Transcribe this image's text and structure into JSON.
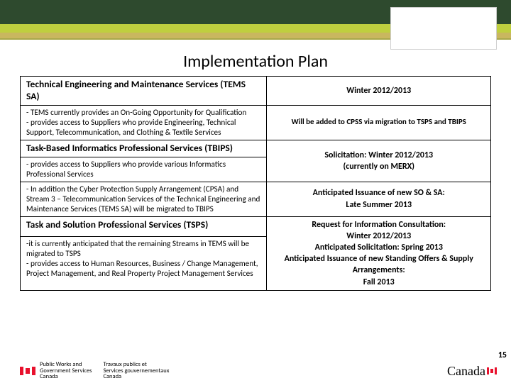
{
  "title": "Implementation Plan",
  "pageNumber": "15",
  "rows": [
    {
      "leftHead": "Technical Engineering and Maintenance Services (TEMS SA)",
      "leftBody": "- TEMS currently provides an On-Going Opportunity for Qualification\n- provides access to Suppliers who provide Engineering, Technical Support, Telecommunication, and Clothing & Textile Services",
      "rightHead": "Winter 2012/2013",
      "rightBody": "Will be added to CPSS via migration to TSPS and TBIPS"
    },
    {
      "leftHead": "Task-Based Informatics Professional Services (TBIPS)",
      "leftBody1": "- provides access to Suppliers who provide various Informatics Professional Services",
      "leftBody2": "- In addition the Cyber Protection Supply Arrangement (CPSA) and Stream 3 – Telecommunication Services of the Technical Engineering and Maintenance Services (TEMS SA) will be migrated to TBIPS",
      "rightBody1": "Solicitation: Winter 2012/2013\n(currently on MERX)",
      "rightBody2": "Anticipated Issuance of new SO & SA:\nLate Summer 2013"
    },
    {
      "leftHead": "Task and Solution Professional Services (TSPS)",
      "leftBody": "-it is currently anticipated that the remaining Streams in TEMS will be migrated to TSPS\n- provides access to Human Resources, Business / Change Management, Project Management, and Real Property Project Management Services",
      "rightBody": "Request for Information Consultation:\nWinter 2012/2013\nAnticipated Solicitation: Spring 2013\nAnticipated Issuance of new Standing Offers & Supply Arrangements:\nFall 2013"
    }
  ],
  "footer": {
    "dept_en_line1": "Public Works and",
    "dept_en_line2": "Government Services",
    "dept_en_line3": "Canada",
    "dept_fr_line1": "Travaux publics et",
    "dept_fr_line2": "Services gouvernementaux",
    "dept_fr_line3": "Canada",
    "wordmark": "Canada"
  }
}
